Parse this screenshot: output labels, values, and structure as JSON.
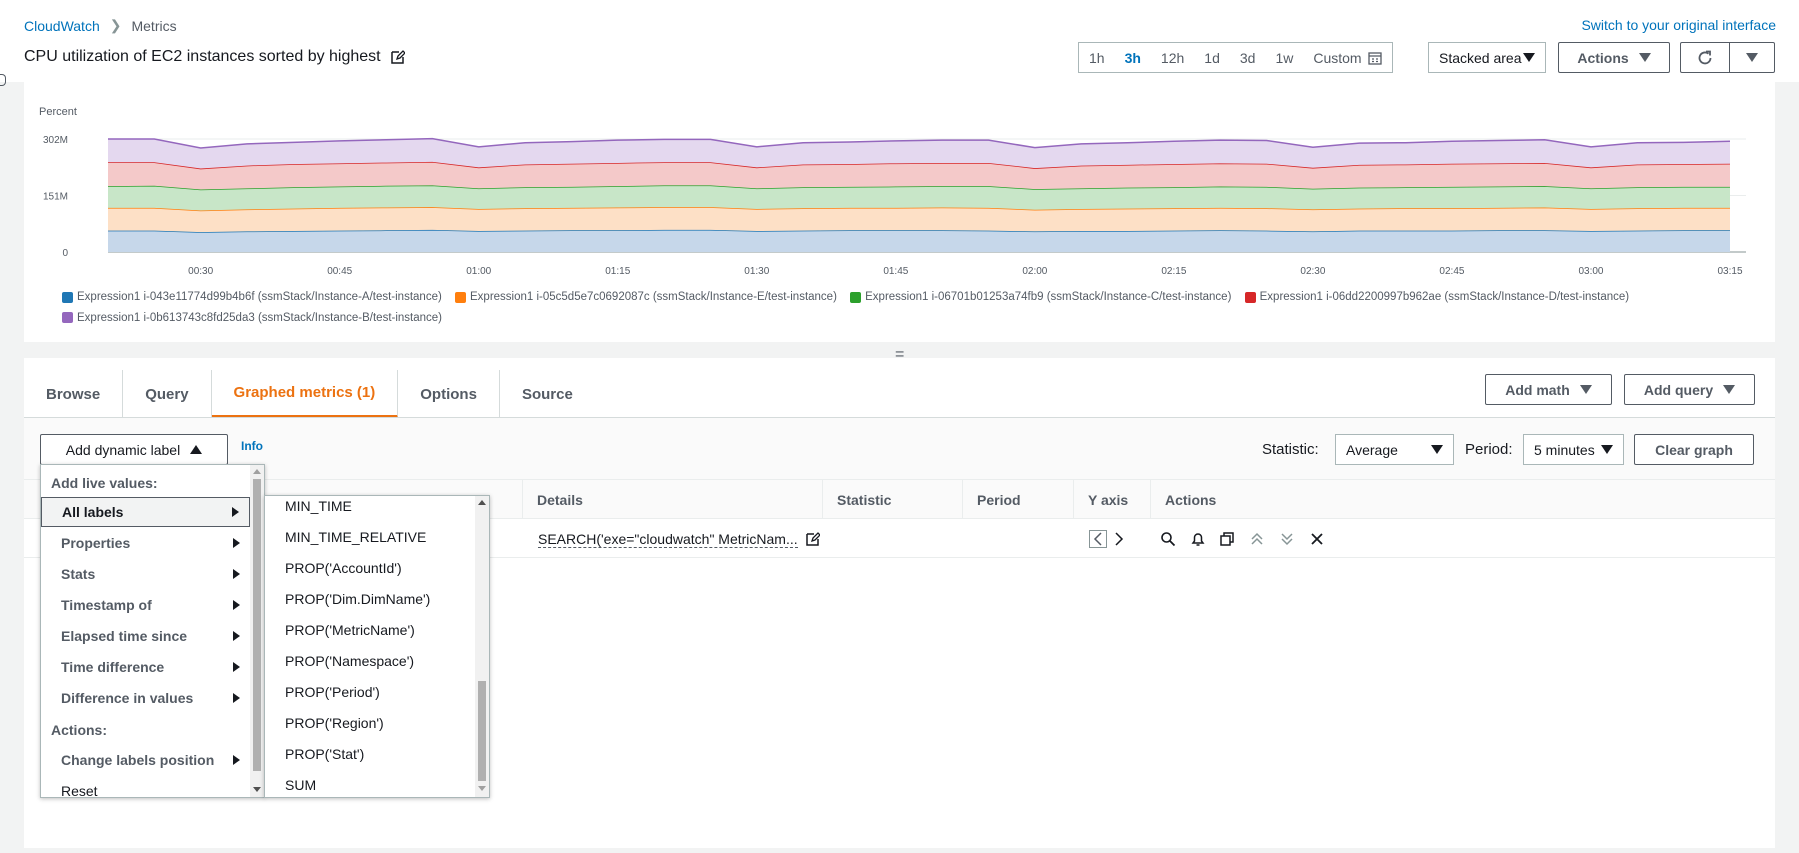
{
  "breadcrumb": {
    "root": "CloudWatch",
    "current": "Metrics"
  },
  "switch_link": "Switch to your original interface",
  "page_title": "CPU utilization of EC2 instances sorted by highest",
  "time_ranges": [
    "1h",
    "3h",
    "12h",
    "1d",
    "3d",
    "1w"
  ],
  "active_range": "3h",
  "custom_label": "Custom",
  "chart_type_select": "Stacked area",
  "actions_button": "Actions",
  "chart_data": {
    "type": "area",
    "stacked": true,
    "ylabel": "Percent",
    "y_ticks": [
      "0",
      "151M",
      "302M"
    ],
    "ylim": [
      0,
      302
    ],
    "x_ticks": [
      "00:30",
      "00:45",
      "01:00",
      "01:15",
      "01:30",
      "01:45",
      "02:00",
      "02:15",
      "02:30",
      "02:45",
      "03:00",
      "03:15"
    ],
    "x": [
      "00:20",
      "00:25",
      "00:30",
      "00:35",
      "00:40",
      "00:45",
      "00:50",
      "00:55",
      "01:00",
      "01:05",
      "01:10",
      "01:15",
      "01:20",
      "01:25",
      "01:30",
      "01:35",
      "01:40",
      "01:45",
      "01:50",
      "01:55",
      "02:00",
      "02:05",
      "02:10",
      "02:15",
      "02:20",
      "02:25",
      "02:30",
      "02:35",
      "02:40",
      "02:45",
      "02:50",
      "02:55",
      "03:00",
      "03:05",
      "03:10",
      "03:15"
    ],
    "series": [
      {
        "name": "Expression1 i-043e11774d99b4b6f (ssmStack/Instance-A/test-instance)",
        "color": "#1f77b4",
        "fill": "#c6d7ea",
        "values": [
          57,
          57,
          53,
          55,
          56,
          57,
          58,
          59,
          56,
          57,
          58,
          58,
          59,
          59,
          56,
          57,
          58,
          58,
          58,
          57,
          55,
          56,
          56,
          57,
          58,
          57,
          55,
          57,
          57,
          57,
          58,
          58,
          56,
          57,
          58,
          58
        ]
      },
      {
        "name": "Expression1 i-05c5d5e7c0692087c (ssmStack/Instance-E/test-instance)",
        "color": "#ff7f0e",
        "fill": "#fde0c6",
        "values": [
          61,
          61,
          58,
          59,
          60,
          61,
          61,
          61,
          59,
          60,
          60,
          61,
          61,
          61,
          59,
          60,
          60,
          60,
          61,
          61,
          58,
          59,
          60,
          60,
          60,
          60,
          59,
          59,
          60,
          60,
          60,
          61,
          59,
          60,
          60,
          60
        ]
      },
      {
        "name": "Expression1 i-06701b01253a74fb9 (ssmStack/Instance-C/test-instance)",
        "color": "#2ca02c",
        "fill": "#c8e6c8",
        "values": [
          58,
          59,
          56,
          56,
          57,
          57,
          58,
          58,
          55,
          56,
          56,
          57,
          58,
          58,
          55,
          56,
          56,
          57,
          57,
          58,
          55,
          55,
          56,
          56,
          57,
          57,
          55,
          56,
          56,
          57,
          57,
          57,
          55,
          56,
          56,
          56
        ]
      },
      {
        "name": "Expression1 i-06dd2200997b962ae (ssmStack/Instance-D/test-instance)",
        "color": "#d62728",
        "fill": "#f4c9c9",
        "values": [
          64,
          63,
          56,
          61,
          62,
          62,
          62,
          63,
          56,
          61,
          62,
          62,
          62,
          62,
          56,
          61,
          61,
          62,
          62,
          62,
          56,
          61,
          61,
          62,
          62,
          62,
          56,
          61,
          61,
          62,
          62,
          62,
          56,
          61,
          61,
          62
        ]
      },
      {
        "name": "Expression1 i-0b613743c8fd25da3 (ssmStack/Instance-B/test-instance)",
        "color": "#9467bd",
        "fill": "#e4d8ef",
        "values": [
          62,
          62,
          55,
          58,
          58,
          60,
          61,
          62,
          55,
          58,
          59,
          61,
          61,
          61,
          55,
          58,
          59,
          60,
          61,
          61,
          55,
          58,
          59,
          61,
          62,
          62,
          55,
          58,
          58,
          60,
          61,
          62,
          55,
          58,
          58,
          60
        ]
      }
    ]
  },
  "tabs": [
    "Browse",
    "Query",
    "Graphed metrics (1)",
    "Options",
    "Source"
  ],
  "active_tab": "Graphed metrics (1)",
  "add_math": "Add math",
  "add_query": "Add query",
  "dynamic_label_button": "Add dynamic label",
  "info_link": "Info",
  "statistic_label": "Statistic:",
  "statistic_value": "Average",
  "period_label": "Period:",
  "period_value": "5 minutes",
  "clear_graph": "Clear graph",
  "table_headers": [
    "Details",
    "Statistic",
    "Period",
    "Y axis",
    "Actions"
  ],
  "row_details": "SEARCH('exe=\"cloudwatch\" MetricNam...",
  "menu": {
    "live_values_heading": "Add live values:",
    "items": [
      "All labels",
      "Properties",
      "Stats",
      "Timestamp of",
      "Elapsed time since",
      "Time difference",
      "Difference in values"
    ],
    "actions_heading": "Actions:",
    "action_items": [
      "Change labels position",
      "Reset"
    ]
  },
  "submenu_items": [
    "MIN_TIME",
    "MIN_TIME_RELATIVE",
    "PROP('AccountId')",
    "PROP('Dim.DimName')",
    "PROP('MetricName')",
    "PROP('Namespace')",
    "PROP('Period')",
    "PROP('Region')",
    "PROP('Stat')",
    "SUM"
  ]
}
